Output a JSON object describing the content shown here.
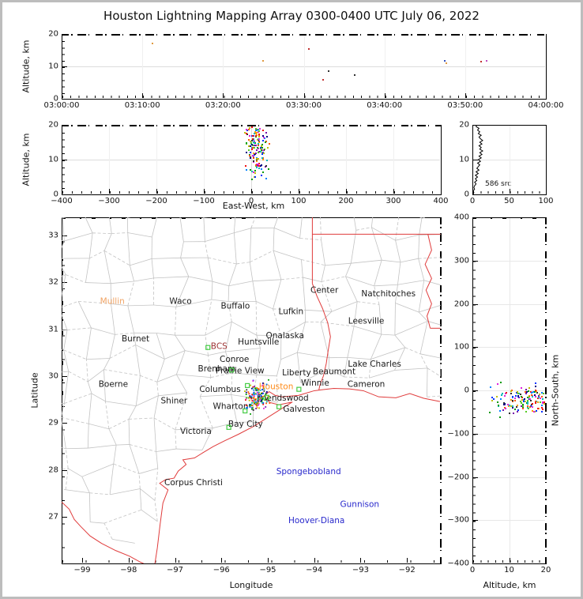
{
  "figure": {
    "title": "Houston Lightning Mapping Array 0300-0400 UTC July 06, 2022",
    "background": "#ffffff",
    "frame_color": "#bdbdbd",
    "border_red": "#e03c3c",
    "county_line_color": "#c3c3c3",
    "station_color": "#44cc44"
  },
  "chart_data": [
    {
      "id": "time_height",
      "type": "scatter",
      "xlabel": "",
      "ylabel": "Altitude, km",
      "xlim_s": [
        0,
        3600
      ],
      "ylim": [
        0,
        20
      ],
      "x_tick_values": [
        0,
        600,
        1200,
        1800,
        2400,
        3000,
        3600
      ],
      "x_tick_labels": [
        "03:00:00",
        "03:10:00",
        "03:20:00",
        "03:30:00",
        "03:40:00",
        "03:50:00",
        "04:00:00"
      ],
      "y_tick_values": [
        0,
        10,
        20
      ],
      "y_tick_labels": [
        "0",
        "10",
        "20"
      ],
      "grid": true,
      "clipped_noise_top": true,
      "points": [
        {
          "t_s": 668,
          "alt_km": 17.3,
          "color": "#e09a40"
        },
        {
          "t_s": 1490,
          "alt_km": 12.0,
          "color": "#e09a40"
        },
        {
          "t_s": 1835,
          "alt_km": 15.6,
          "color": "#c03030"
        },
        {
          "t_s": 1980,
          "alt_km": 8.8,
          "color": "#303030"
        },
        {
          "t_s": 1940,
          "alt_km": 6.0,
          "color": "#c03030"
        },
        {
          "t_s": 2170,
          "alt_km": 7.5,
          "color": "#303030"
        },
        {
          "t_s": 2845,
          "alt_km": 12.0,
          "color": "#3050c0"
        },
        {
          "t_s": 2852,
          "alt_km": 11.1,
          "color": "#e09a40"
        },
        {
          "t_s": 3115,
          "alt_km": 11.7,
          "color": "#c03030"
        },
        {
          "t_s": 3152,
          "alt_km": 11.9,
          "color": "#c050c0"
        }
      ]
    },
    {
      "id": "ew_height",
      "type": "scatter",
      "xlabel": "East-West, km",
      "ylabel": "Altitude, km",
      "xlim": [
        -400,
        400
      ],
      "ylim": [
        0,
        20
      ],
      "x_tick_values": [
        -400,
        -300,
        -200,
        -100,
        0,
        100,
        200,
        300,
        400
      ],
      "x_tick_labels": [
        "−400",
        "−300",
        "−200",
        "−100",
        "0",
        "100",
        "200",
        "300",
        "400"
      ],
      "y_tick_values": [
        0,
        10,
        20
      ],
      "y_tick_labels": [
        "0",
        "10",
        "20"
      ],
      "grid": true,
      "clipped_noise_top": true
    },
    {
      "id": "source_histogram",
      "type": "line",
      "xlabel": "",
      "ylabel": "",
      "xlim": [
        0,
        100
      ],
      "ylim": [
        0,
        20
      ],
      "x_tick_values": [
        0,
        50,
        100
      ],
      "x_tick_labels": [
        "0",
        "50",
        "100"
      ],
      "y_tick_values": [
        0,
        10,
        20
      ],
      "y_tick_labels": [
        "0",
        "10",
        "20"
      ],
      "annotation": "586 src",
      "alt_bin_km": 0.5,
      "counts": [
        1,
        2,
        1,
        3,
        2,
        3,
        5,
        3,
        6,
        4,
        7,
        4,
        8,
        5,
        9,
        6,
        8,
        10,
        7,
        11,
        8,
        12,
        9,
        13,
        10,
        14,
        10,
        12,
        9,
        13,
        10,
        14,
        11,
        9,
        12,
        8,
        10,
        7,
        9,
        5,
        6
      ]
    },
    {
      "id": "plan_view",
      "type": "scatter",
      "xlabel": "Longitude",
      "ylabel": "Latitude",
      "xlim": [
        -99.443,
        -91.272
      ],
      "ylim": [
        26.015,
        33.38
      ],
      "x_tick_values": [
        -99,
        -98,
        -97,
        -96,
        -95,
        -94,
        -93,
        -92
      ],
      "x_tick_labels": [
        "−99",
        "−98",
        "−97",
        "−96",
        "−95",
        "−94",
        "−93",
        "−92"
      ],
      "y_tick_values": [
        33,
        32,
        31,
        30,
        29,
        28,
        27
      ],
      "y_tick_labels": [
        "33",
        "32",
        "31",
        "30",
        "29",
        "28",
        "27"
      ],
      "cities": [
        {
          "name": "Mullin",
          "lon": -98.35,
          "lat": 31.6,
          "color": "#f0a364"
        },
        {
          "name": "Waco",
          "lon": -96.88,
          "lat": 31.6,
          "color": "#1a1a1a"
        },
        {
          "name": "Buffalo",
          "lon": -95.7,
          "lat": 31.5,
          "color": "#1a1a1a"
        },
        {
          "name": "Center",
          "lon": -93.78,
          "lat": 31.83,
          "color": "#1a1a1a"
        },
        {
          "name": "Natchitoches",
          "lon": -92.4,
          "lat": 31.76,
          "color": "#1a1a1a"
        },
        {
          "name": "Lufkin",
          "lon": -94.5,
          "lat": 31.38,
          "color": "#1a1a1a"
        },
        {
          "name": "Leesville",
          "lon": -92.88,
          "lat": 31.18,
          "color": "#1a1a1a"
        },
        {
          "name": "Burnet",
          "lon": -97.85,
          "lat": 30.8,
          "color": "#1a1a1a"
        },
        {
          "name": "Onalaska",
          "lon": -94.63,
          "lat": 30.87,
          "color": "#1a1a1a"
        },
        {
          "name": "Huntsville",
          "lon": -95.2,
          "lat": 30.73,
          "color": "#1a1a1a"
        },
        {
          "name": "BCS",
          "lon": -96.05,
          "lat": 30.64,
          "color": "#9c3232"
        },
        {
          "name": "Conroe",
          "lon": -95.72,
          "lat": 30.36,
          "color": "#1a1a1a"
        },
        {
          "name": "Brenham",
          "lon": -96.1,
          "lat": 30.16,
          "color": "#1a1a1a"
        },
        {
          "name": "Prairie View",
          "lon": -95.6,
          "lat": 30.12,
          "color": "#1a1a1a"
        },
        {
          "name": "Liberty",
          "lon": -94.38,
          "lat": 30.08,
          "color": "#1a1a1a"
        },
        {
          "name": "Beaumont",
          "lon": -93.57,
          "lat": 30.1,
          "color": "#1a1a1a"
        },
        {
          "name": "Lake Charles",
          "lon": -92.7,
          "lat": 30.26,
          "color": "#1a1a1a"
        },
        {
          "name": "Boerne",
          "lon": -98.33,
          "lat": 29.83,
          "color": "#1a1a1a"
        },
        {
          "name": "Columbus",
          "lon": -96.03,
          "lat": 29.72,
          "color": "#1a1a1a"
        },
        {
          "name": "Winnie",
          "lon": -93.98,
          "lat": 29.86,
          "color": "#1a1a1a"
        },
        {
          "name": "Cameron",
          "lon": -92.88,
          "lat": 29.83,
          "color": "#1a1a1a"
        },
        {
          "name": "Houston",
          "lon": -94.82,
          "lat": 29.78,
          "color": "#ff8c1a"
        },
        {
          "name": "Friendswood",
          "lon": -94.68,
          "lat": 29.54,
          "color": "#1a1a1a"
        },
        {
          "name": "Galveston",
          "lon": -94.22,
          "lat": 29.3,
          "color": "#1a1a1a"
        },
        {
          "name": "Wharton",
          "lon": -95.8,
          "lat": 29.36,
          "color": "#1a1a1a"
        },
        {
          "name": "Shiner",
          "lon": -97.02,
          "lat": 29.48,
          "color": "#1a1a1a"
        },
        {
          "name": "Bay City",
          "lon": -95.48,
          "lat": 28.98,
          "color": "#1a1a1a"
        },
        {
          "name": "Victoria",
          "lon": -96.55,
          "lat": 28.83,
          "color": "#1a1a1a"
        },
        {
          "name": "Corpus Christi",
          "lon": -96.6,
          "lat": 27.74,
          "color": "#1a1a1a"
        },
        {
          "name": "Spongebobland",
          "lon": -94.12,
          "lat": 27.97,
          "color": "#2929cc"
        },
        {
          "name": "Gunnison",
          "lon": -93.02,
          "lat": 27.28,
          "color": "#2929cc"
        },
        {
          "name": "Hoover-Diana",
          "lon": -93.95,
          "lat": 26.93,
          "color": "#2929cc"
        }
      ],
      "stations": [
        [
          -96.29,
          30.61
        ],
        [
          -95.78,
          30.13
        ],
        [
          -95.44,
          29.8
        ],
        [
          -95.49,
          29.26
        ],
        [
          -95.02,
          29.55
        ],
        [
          -94.76,
          29.35
        ],
        [
          -94.33,
          29.72
        ],
        [
          -95.84,
          28.91
        ]
      ],
      "map_lines": {
        "coast": [
          [
            -97.45,
            25.9
          ],
          [
            -97.38,
            26.35
          ],
          [
            -97.32,
            26.85
          ],
          [
            -97.26,
            27.3
          ],
          [
            -97.15,
            27.58
          ],
          [
            -97.33,
            27.72
          ],
          [
            -97.2,
            27.8
          ],
          [
            -97.02,
            27.83
          ],
          [
            -96.93,
            27.98
          ],
          [
            -96.76,
            28.12
          ],
          [
            -96.83,
            28.22
          ],
          [
            -96.58,
            28.26
          ],
          [
            -96.4,
            28.37
          ],
          [
            -96.18,
            28.5
          ],
          [
            -95.94,
            28.62
          ],
          [
            -95.64,
            28.76
          ],
          [
            -95.29,
            28.94
          ],
          [
            -94.94,
            29.16
          ],
          [
            -94.7,
            29.31
          ],
          [
            -94.47,
            29.45
          ],
          [
            -94.76,
            29.39
          ],
          [
            -94.96,
            29.44
          ],
          [
            -95.08,
            29.58
          ],
          [
            -94.97,
            29.67
          ],
          [
            -94.84,
            29.59
          ],
          [
            -94.69,
            29.56
          ],
          [
            -94.34,
            29.59
          ],
          [
            -94.0,
            29.69
          ],
          [
            -93.84,
            29.71
          ],
          [
            -93.58,
            29.74
          ],
          [
            -93.24,
            29.73
          ],
          [
            -92.94,
            29.69
          ],
          [
            -92.61,
            29.56
          ],
          [
            -92.24,
            29.54
          ],
          [
            -91.94,
            29.63
          ],
          [
            -91.64,
            29.53
          ],
          [
            -91.29,
            29.46
          ]
        ],
        "rio_grande": [
          [
            -99.44,
            27.32
          ],
          [
            -99.28,
            27.17
          ],
          [
            -99.17,
            26.95
          ],
          [
            -99.03,
            26.8
          ],
          [
            -98.83,
            26.6
          ],
          [
            -98.58,
            26.44
          ],
          [
            -98.28,
            26.29
          ],
          [
            -97.98,
            26.17
          ],
          [
            -97.74,
            26.04
          ],
          [
            -97.56,
            25.96
          ],
          [
            -97.45,
            25.9
          ]
        ],
        "tx_border_vertical": [
          [
            -94.04,
            33.38
          ],
          [
            -94.04,
            31.97
          ]
        ],
        "sabine_river": [
          [
            -94.04,
            31.97
          ],
          [
            -93.94,
            31.7
          ],
          [
            -93.82,
            31.44
          ],
          [
            -93.71,
            31.14
          ],
          [
            -93.65,
            30.84
          ],
          [
            -93.7,
            30.54
          ],
          [
            -93.74,
            30.27
          ],
          [
            -93.8,
            30.01
          ],
          [
            -93.88,
            29.8
          ],
          [
            -93.9,
            29.7
          ]
        ],
        "la_ar_border": [
          [
            -94.04,
            33.02
          ],
          [
            -91.28,
            33.02
          ]
        ],
        "mississippi_river": [
          [
            -91.55,
            33.02
          ],
          [
            -91.47,
            32.68
          ],
          [
            -91.61,
            32.38
          ],
          [
            -91.47,
            32.08
          ],
          [
            -91.59,
            31.83
          ],
          [
            -91.47,
            31.54
          ],
          [
            -91.57,
            31.28
          ],
          [
            -91.5,
            31.02
          ]
        ],
        "la_ms_border": [
          [
            -91.5,
            31.02
          ],
          [
            -91.28,
            31.02
          ]
        ],
        "land_boundary": [
          [
            -99.44,
            27.35
          ],
          [
            -99.0,
            26.95
          ],
          [
            -98.5,
            26.55
          ],
          [
            -98.0,
            26.18
          ],
          [
            -97.5,
            25.93
          ],
          [
            -97.32,
            26.8
          ],
          [
            -97.15,
            27.5
          ],
          [
            -96.9,
            27.97
          ],
          [
            -96.4,
            28.36
          ],
          [
            -95.8,
            28.66
          ],
          [
            -95.1,
            29.05
          ],
          [
            -94.5,
            29.43
          ],
          [
            -93.9,
            29.69
          ],
          [
            -93.2,
            29.74
          ],
          [
            -92.5,
            29.56
          ],
          [
            -91.9,
            29.62
          ],
          [
            -91.28,
            29.46
          ]
        ]
      },
      "county_mesh": {
        "seed": 7,
        "dlon": 0.52,
        "dlat": 0.5,
        "jitter_deg": 0.16
      }
    },
    {
      "id": "ns_height",
      "type": "scatter",
      "xlabel": "Altitude, km",
      "ylabel": "North-South, km",
      "xlim": [
        0,
        20
      ],
      "ylim": [
        -400,
        400
      ],
      "x_tick_values": [
        0,
        10,
        20
      ],
      "x_tick_labels": [
        "0",
        "10",
        "20"
      ],
      "y_tick_values": [
        400,
        300,
        200,
        100,
        0,
        -100,
        -200,
        -300,
        -400
      ],
      "y_tick_labels": [
        "400",
        "300",
        "200",
        "100",
        "0",
        "−100",
        "−200",
        "−300",
        "−400"
      ],
      "grid": true,
      "clipped_noise_right": true
    }
  ],
  "storm_cluster": {
    "count": 150,
    "seed": 13,
    "lon_mean": -95.27,
    "lon_std": 0.17,
    "lat_mean": 29.6,
    "lat_std": 0.2,
    "alt_min_km": 4,
    "alt_max_km": 19.5,
    "network_center": {
      "lon": -95.36,
      "lat": 29.76
    },
    "km_per_deg_lon": 96.5,
    "km_per_deg_lat": 111.0,
    "colors": [
      "#000080",
      "#0033ff",
      "#0080ff",
      "#00b8b8",
      "#009900",
      "#55cc22",
      "#bfbf00",
      "#ff9900",
      "#ff5500",
      "#ee1111",
      "#dd22dd",
      "#7711aa",
      "#303030"
    ]
  }
}
